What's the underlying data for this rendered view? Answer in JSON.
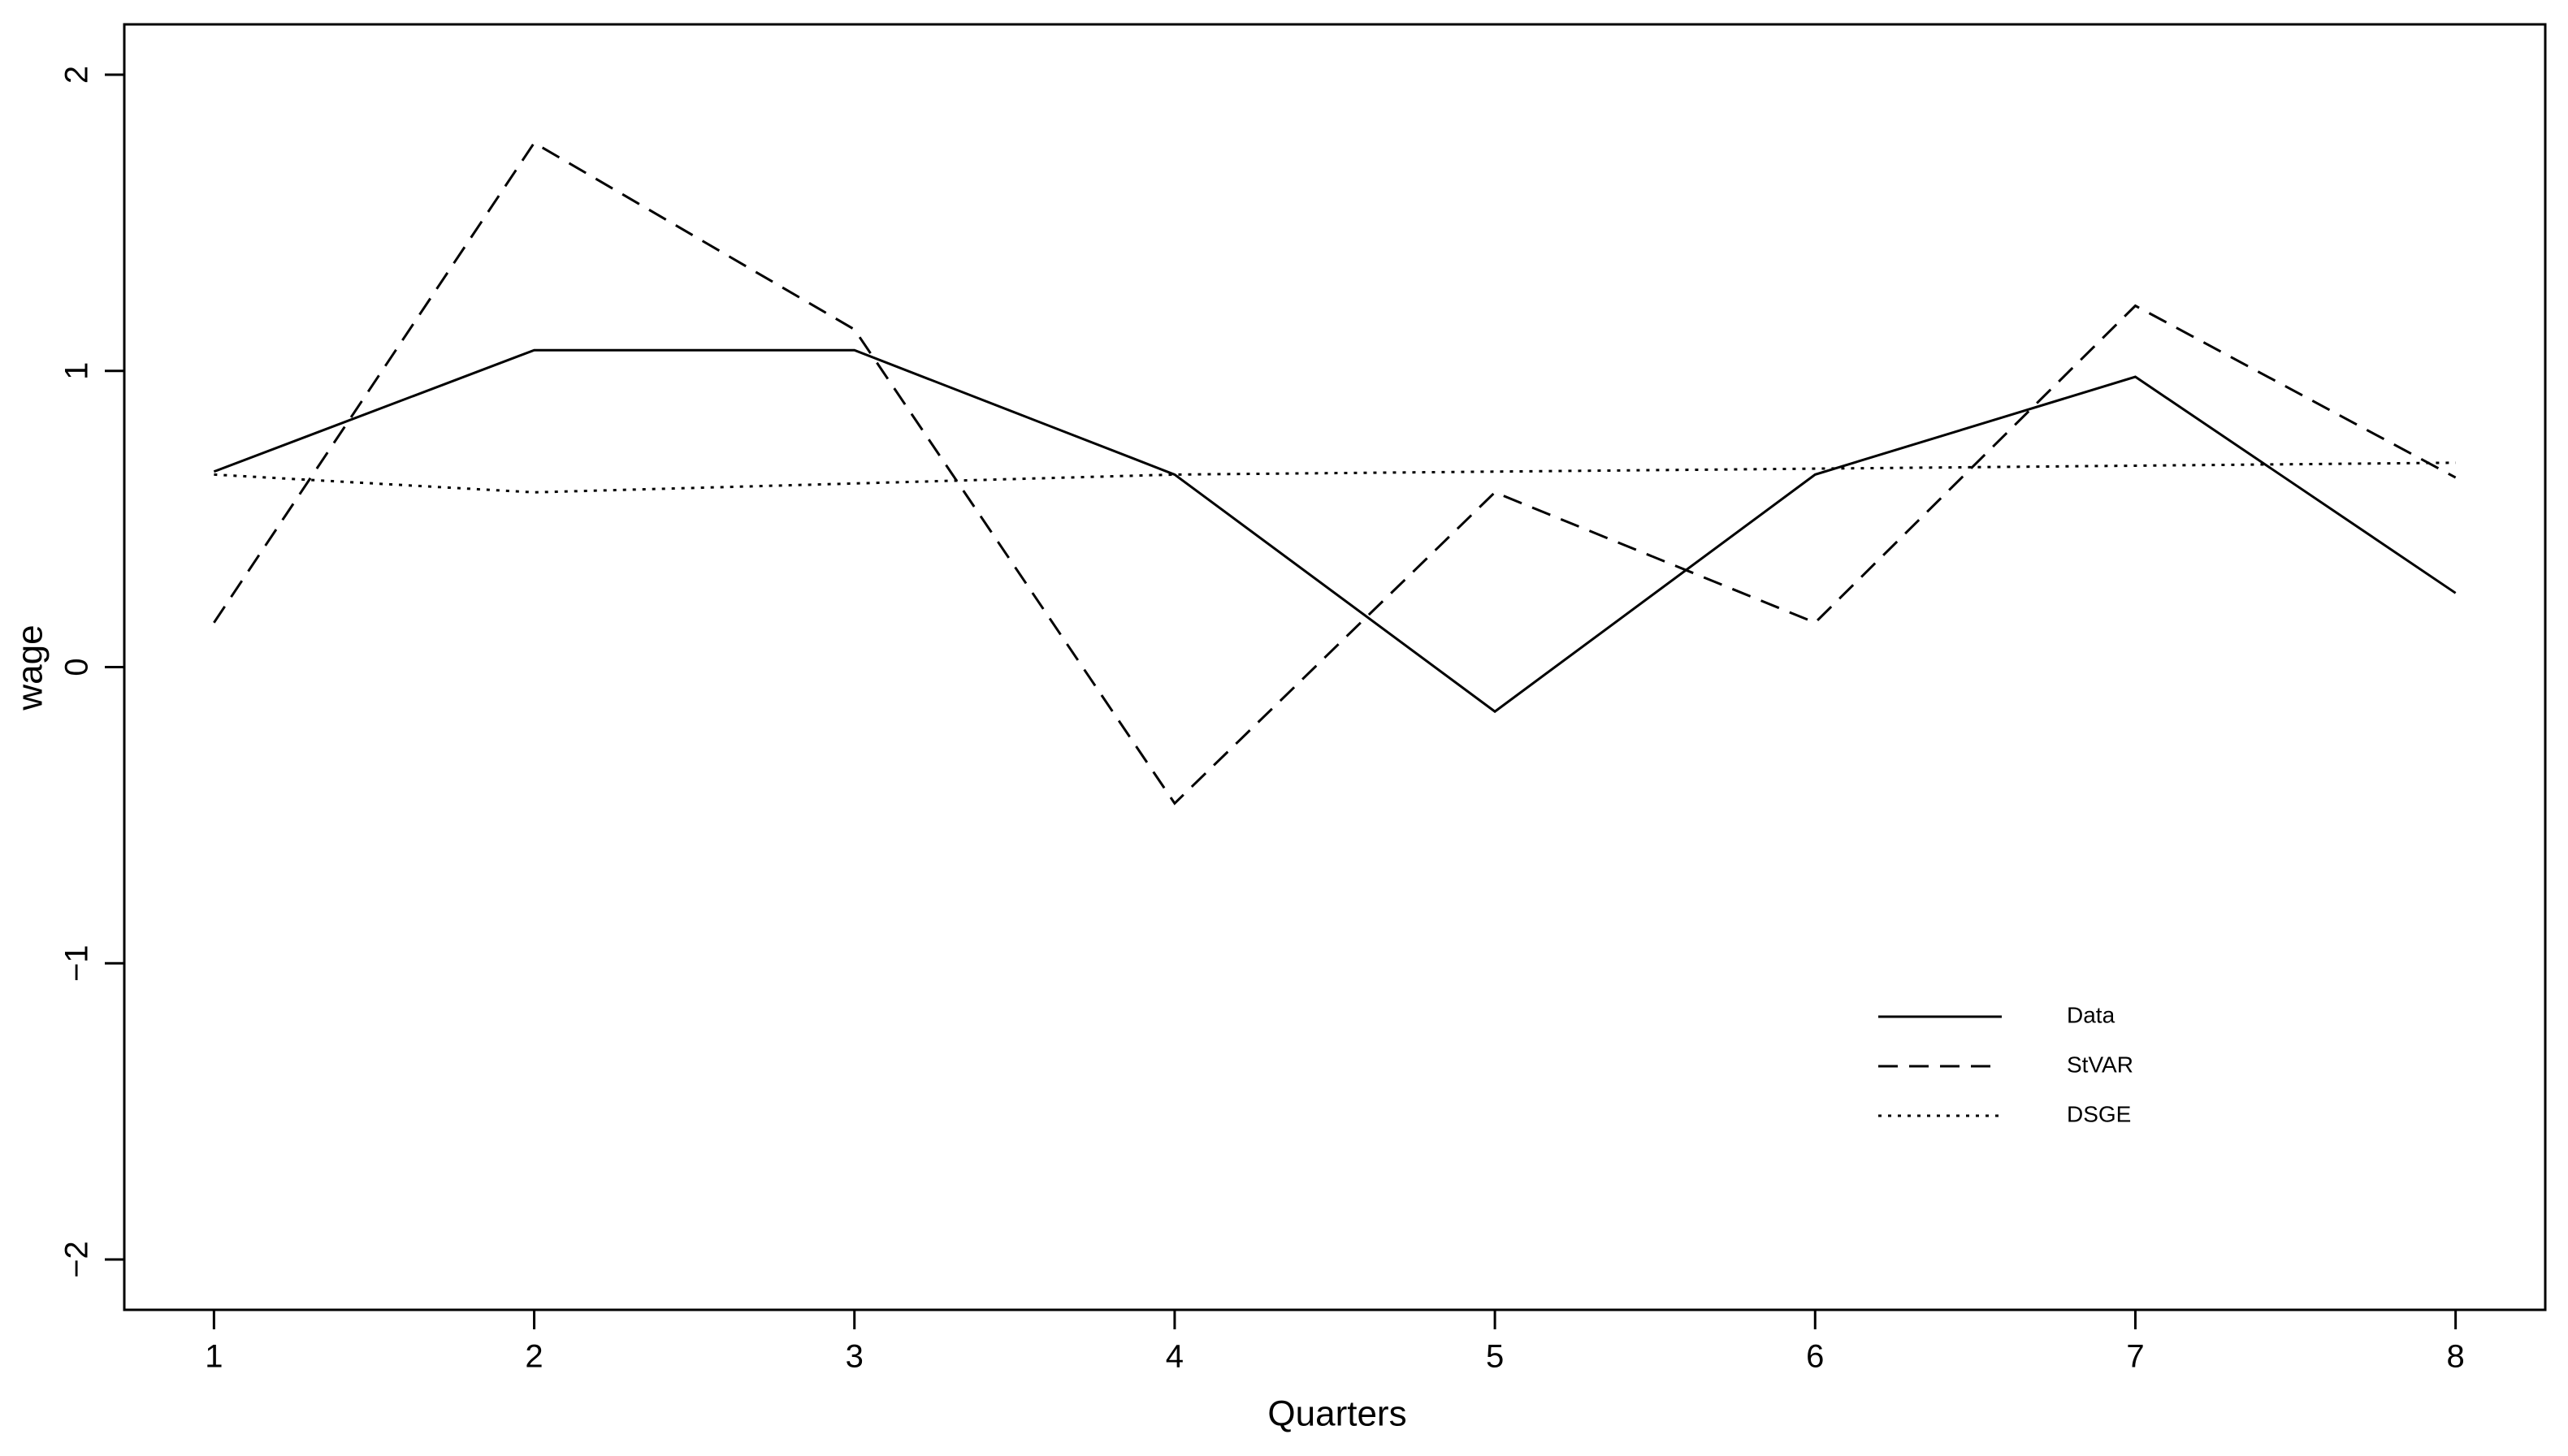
{
  "chart_data": {
    "type": "line",
    "x_label": "Quarters",
    "y_label": "wage",
    "x": [
      1,
      2,
      3,
      4,
      5,
      6,
      7,
      8
    ],
    "series": [
      {
        "name": "Data",
        "color": "#000000",
        "dash": "solid",
        "values": [
          0.66,
          1.07,
          1.07,
          0.65,
          -0.15,
          0.65,
          0.98,
          0.25
        ]
      },
      {
        "name": "StVAR",
        "color": "#000000",
        "dash": "dashed",
        "values": [
          0.15,
          1.77,
          1.14,
          -0.46,
          0.59,
          0.15,
          1.22,
          0.64
        ]
      },
      {
        "name": "DSGE",
        "color": "#000000",
        "dash": "dotted",
        "values": [
          0.65,
          0.59,
          0.62,
          0.65,
          0.66,
          0.67,
          0.68,
          0.69
        ]
      }
    ],
    "xlim": [
      0.72,
      8.28
    ],
    "xticks": [
      1,
      2,
      3,
      4,
      5,
      6,
      7,
      8
    ],
    "ylim": [
      -2.17,
      2.17
    ],
    "yticks": [
      {
        "value": -2,
        "label": "−2"
      },
      {
        "value": -1,
        "label": "−1"
      },
      0,
      1,
      2
    ],
    "grid": false,
    "legend": "lower right"
  }
}
